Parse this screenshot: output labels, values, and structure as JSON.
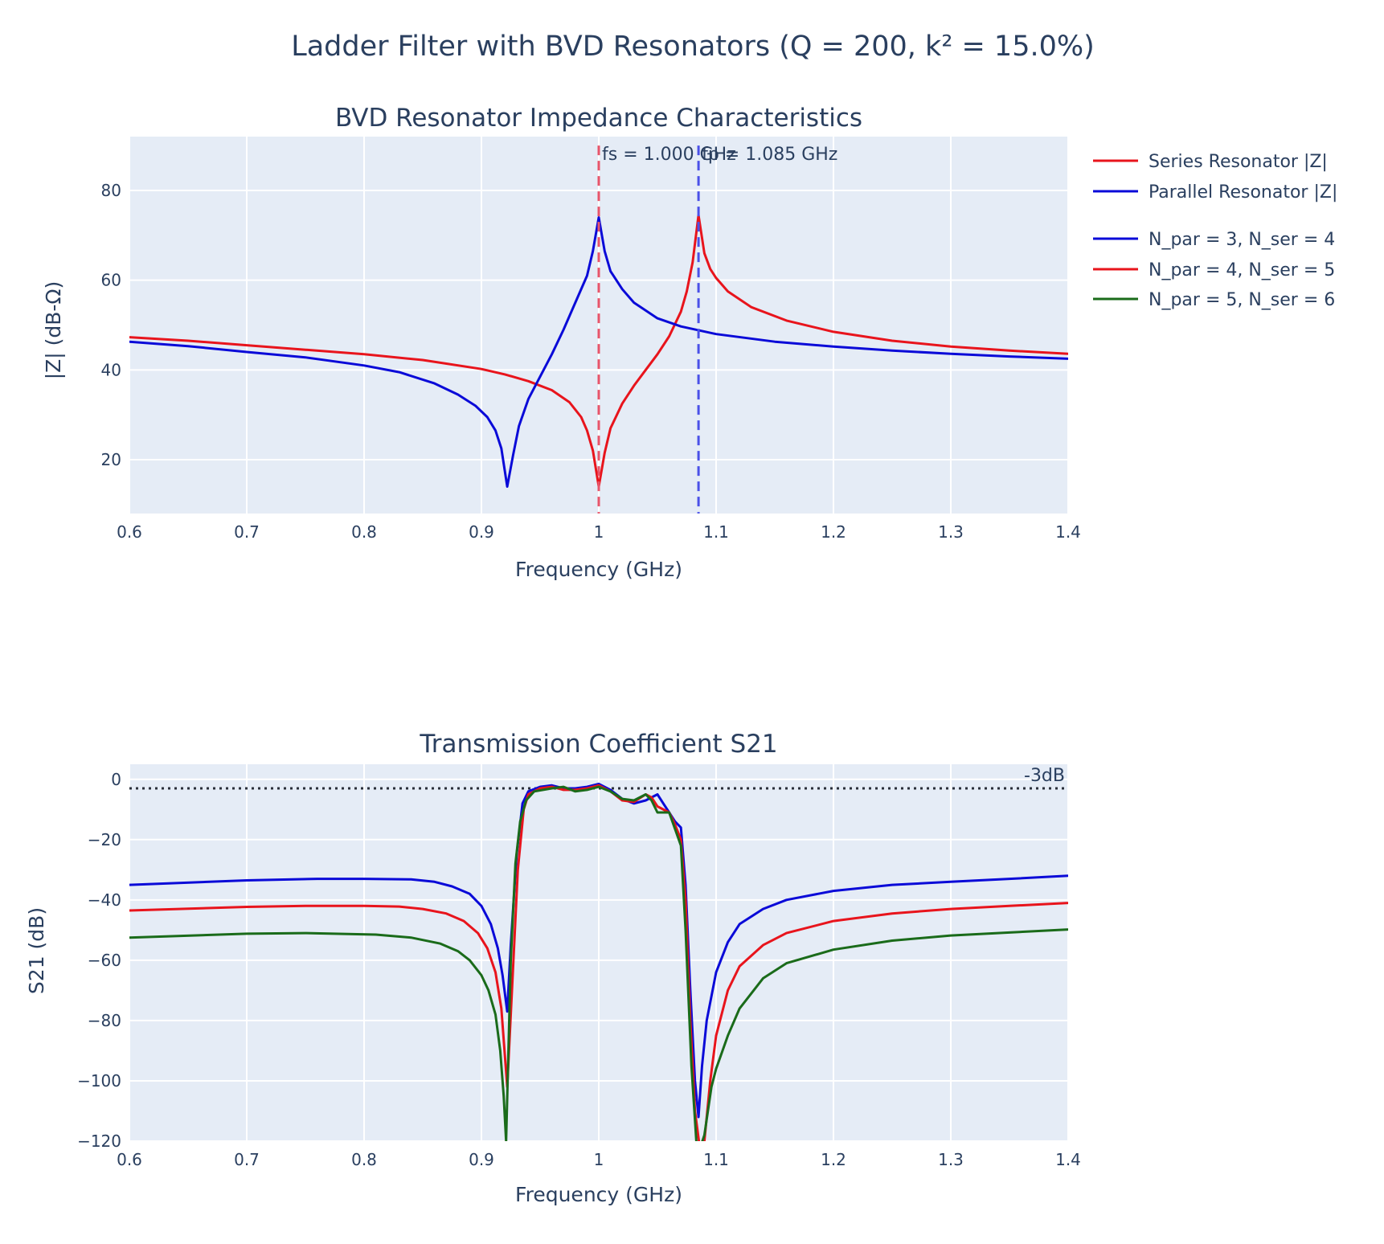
{
  "title": "Ladder Filter with BVD Resonators (Q = 200, k² = 15.0%)",
  "legend": [
    {
      "label": "Series Resonator |Z|",
      "color": "#e8141c"
    },
    {
      "label": "Parallel Resonator |Z|",
      "color": "#0a0ad8"
    },
    {
      "label": "N_par = 3, N_ser = 4",
      "color": "#0a0ad8"
    },
    {
      "label": "N_par = 4, N_ser = 5",
      "color": "#e8141c"
    },
    {
      "label": "N_par = 5, N_ser = 6",
      "color": "#1a6b1a"
    }
  ],
  "chart_data": [
    {
      "type": "line",
      "title": "BVD Resonator Impedance Characteristics",
      "xlabel": "Frequency (GHz)",
      "ylabel": "|Z| (dB-Ω)",
      "xlim": [
        0.6,
        1.4
      ],
      "ylim": [
        8,
        92
      ],
      "xticks": [
        0.6,
        0.7,
        0.8,
        0.9,
        1,
        1.1,
        1.2,
        1.3,
        1.4
      ],
      "xtick_labels": [
        "0.6",
        "0.7",
        "0.8",
        "0.9",
        "1",
        "1.1",
        "1.2",
        "1.3",
        "1.4"
      ],
      "yticks": [
        20,
        40,
        60,
        80
      ],
      "ytick_labels": [
        "20",
        "40",
        "60",
        "80"
      ],
      "grid": true,
      "series": [
        {
          "name": "Series Resonator |Z|",
          "color": "#e8141c",
          "x": [
            0.6,
            0.65,
            0.7,
            0.75,
            0.8,
            0.85,
            0.9,
            0.92,
            0.94,
            0.96,
            0.975,
            0.985,
            0.99,
            0.995,
            1.0,
            1.005,
            1.01,
            1.02,
            1.03,
            1.04,
            1.05,
            1.06,
            1.07,
            1.075,
            1.08,
            1.085,
            1.09,
            1.095,
            1.1,
            1.11,
            1.13,
            1.16,
            1.2,
            1.25,
            1.3,
            1.35,
            1.4
          ],
          "y": [
            47.3,
            46.5,
            45.5,
            44.5,
            43.5,
            42.2,
            40.2,
            39.0,
            37.5,
            35.5,
            32.8,
            29.5,
            26.5,
            22.0,
            14.0,
            21.5,
            27.0,
            32.5,
            36.5,
            40.0,
            43.5,
            47.5,
            53.0,
            57.5,
            64.0,
            74.5,
            66.0,
            62.5,
            60.5,
            57.5,
            54.0,
            51.0,
            48.5,
            46.5,
            45.2,
            44.3,
            43.6
          ]
        },
        {
          "name": "Parallel Resonator |Z|",
          "color": "#0a0ad8",
          "x": [
            0.6,
            0.65,
            0.7,
            0.75,
            0.8,
            0.83,
            0.86,
            0.88,
            0.895,
            0.905,
            0.912,
            0.917,
            0.922,
            0.927,
            0.932,
            0.94,
            0.95,
            0.96,
            0.97,
            0.98,
            0.99,
            0.995,
            1.0,
            1.005,
            1.01,
            1.02,
            1.03,
            1.05,
            1.07,
            1.1,
            1.15,
            1.2,
            1.25,
            1.3,
            1.35,
            1.4
          ],
          "y": [
            46.3,
            45.3,
            44.0,
            42.8,
            41.0,
            39.5,
            37.0,
            34.5,
            32.0,
            29.5,
            26.5,
            22.5,
            14.0,
            21.0,
            27.5,
            33.5,
            38.5,
            43.5,
            49.0,
            55.0,
            61.0,
            66.5,
            74.0,
            66.5,
            62.0,
            58.0,
            55.0,
            51.5,
            49.7,
            48.0,
            46.3,
            45.2,
            44.3,
            43.6,
            43.0,
            42.5
          ]
        }
      ],
      "vlines": [
        {
          "x": 1.0,
          "color": "#e8556a",
          "label": "fs = 1.000 GHz"
        },
        {
          "x": 1.085,
          "color": "#4a50e8",
          "label": "fp = 1.085 GHz"
        }
      ]
    },
    {
      "type": "line",
      "title": "Transmission Coefficient S21",
      "xlabel": "Frequency (GHz)",
      "ylabel": "S21 (dB)",
      "xlim": [
        0.6,
        1.4
      ],
      "ylim": [
        -120,
        5
      ],
      "xticks": [
        0.6,
        0.7,
        0.8,
        0.9,
        1,
        1.1,
        1.2,
        1.3,
        1.4
      ],
      "xtick_labels": [
        "0.6",
        "0.7",
        "0.8",
        "0.9",
        "1",
        "1.1",
        "1.2",
        "1.3",
        "1.4"
      ],
      "yticks": [
        0,
        -20,
        -40,
        -60,
        -80,
        -100,
        -120
      ],
      "ytick_labels": [
        "0",
        "−20",
        "−40",
        "−60",
        "−80",
        "−100",
        "−120"
      ],
      "grid": true,
      "series": [
        {
          "name": "N_par = 3, N_ser = 4",
          "color": "#0a0ad8",
          "x": [
            0.6,
            0.7,
            0.76,
            0.8,
            0.84,
            0.86,
            0.875,
            0.89,
            0.9,
            0.908,
            0.914,
            0.918,
            0.922,
            0.925,
            0.93,
            0.935,
            0.94,
            0.95,
            0.96,
            0.97,
            0.98,
            0.99,
            1.0,
            1.01,
            1.02,
            1.03,
            1.04,
            1.05,
            1.055,
            1.06,
            1.065,
            1.07,
            1.074,
            1.078,
            1.082,
            1.085,
            1.088,
            1.092,
            1.1,
            1.11,
            1.12,
            1.14,
            1.16,
            1.2,
            1.25,
            1.3,
            1.35,
            1.4
          ],
          "y": [
            -35,
            -33.5,
            -33,
            -33,
            -33.2,
            -34,
            -35.5,
            -38,
            -42,
            -48,
            -56,
            -65,
            -77,
            -55,
            -25,
            -8,
            -4,
            -2.5,
            -2,
            -3,
            -3,
            -2.5,
            -1.5,
            -3.5,
            -6.5,
            -8,
            -7,
            -5,
            -8,
            -11,
            -14,
            -16,
            -35,
            -70,
            -100,
            -112,
            -95,
            -80,
            -64,
            -54,
            -48,
            -43,
            -40,
            -37,
            -35,
            -34,
            -33,
            -32
          ]
        },
        {
          "name": "N_par = 4, N_ser = 5",
          "color": "#e8141c",
          "x": [
            0.6,
            0.7,
            0.75,
            0.8,
            0.83,
            0.85,
            0.87,
            0.885,
            0.897,
            0.905,
            0.912,
            0.917,
            0.922,
            0.926,
            0.931,
            0.936,
            0.94,
            0.95,
            0.96,
            0.97,
            0.98,
            0.99,
            1.0,
            1.01,
            1.02,
            1.03,
            1.04,
            1.045,
            1.05,
            1.06,
            1.065,
            1.07,
            1.074,
            1.078,
            1.082,
            1.086,
            1.09,
            1.095,
            1.1,
            1.11,
            1.12,
            1.14,
            1.16,
            1.2,
            1.25,
            1.3,
            1.35,
            1.4
          ],
          "y": [
            -43.5,
            -42.3,
            -42,
            -42,
            -42.2,
            -43,
            -44.5,
            -47,
            -51,
            -56,
            -64,
            -76,
            -102,
            -70,
            -30,
            -10,
            -5,
            -3,
            -2.5,
            -3.5,
            -3.5,
            -3,
            -2,
            -4,
            -7,
            -7.5,
            -5,
            -6,
            -9,
            -11,
            -15,
            -20,
            -40,
            -80,
            -110,
            -122,
            -120,
            -100,
            -85,
            -70,
            -62,
            -55,
            -51,
            -47,
            -44.5,
            -43,
            -42,
            -41
          ]
        },
        {
          "name": "N_par = 5, N_ser = 6",
          "color": "#1a6b1a",
          "x": [
            0.6,
            0.7,
            0.75,
            0.81,
            0.84,
            0.865,
            0.88,
            0.89,
            0.9,
            0.906,
            0.912,
            0.916,
            0.919,
            0.921,
            0.925,
            0.929,
            0.933,
            0.938,
            0.945,
            0.96,
            0.97,
            0.98,
            0.99,
            1.0,
            1.01,
            1.02,
            1.03,
            1.04,
            1.045,
            1.05,
            1.06,
            1.07,
            1.074,
            1.079,
            1.084,
            1.09,
            1.096,
            1.1,
            1.11,
            1.12,
            1.14,
            1.16,
            1.2,
            1.25,
            1.3,
            1.35,
            1.4
          ],
          "y": [
            -52.5,
            -51.2,
            -51,
            -51.5,
            -52.5,
            -54.5,
            -57,
            -60,
            -65,
            -70,
            -78,
            -90,
            -105,
            -120,
            -60,
            -28,
            -14,
            -7,
            -4,
            -3,
            -2.5,
            -4,
            -3.5,
            -2.5,
            -4,
            -6.5,
            -7,
            -5,
            -7,
            -11,
            -11,
            -22,
            -50,
            -95,
            -125,
            -118,
            -102,
            -96,
            -85,
            -76,
            -66,
            -61,
            -56.5,
            -53.5,
            -51.8,
            -50.8,
            -49.8
          ]
        }
      ],
      "hlines": [
        {
          "y": -3,
          "color": "#2a2f3a",
          "label": "-3dB"
        }
      ]
    }
  ]
}
